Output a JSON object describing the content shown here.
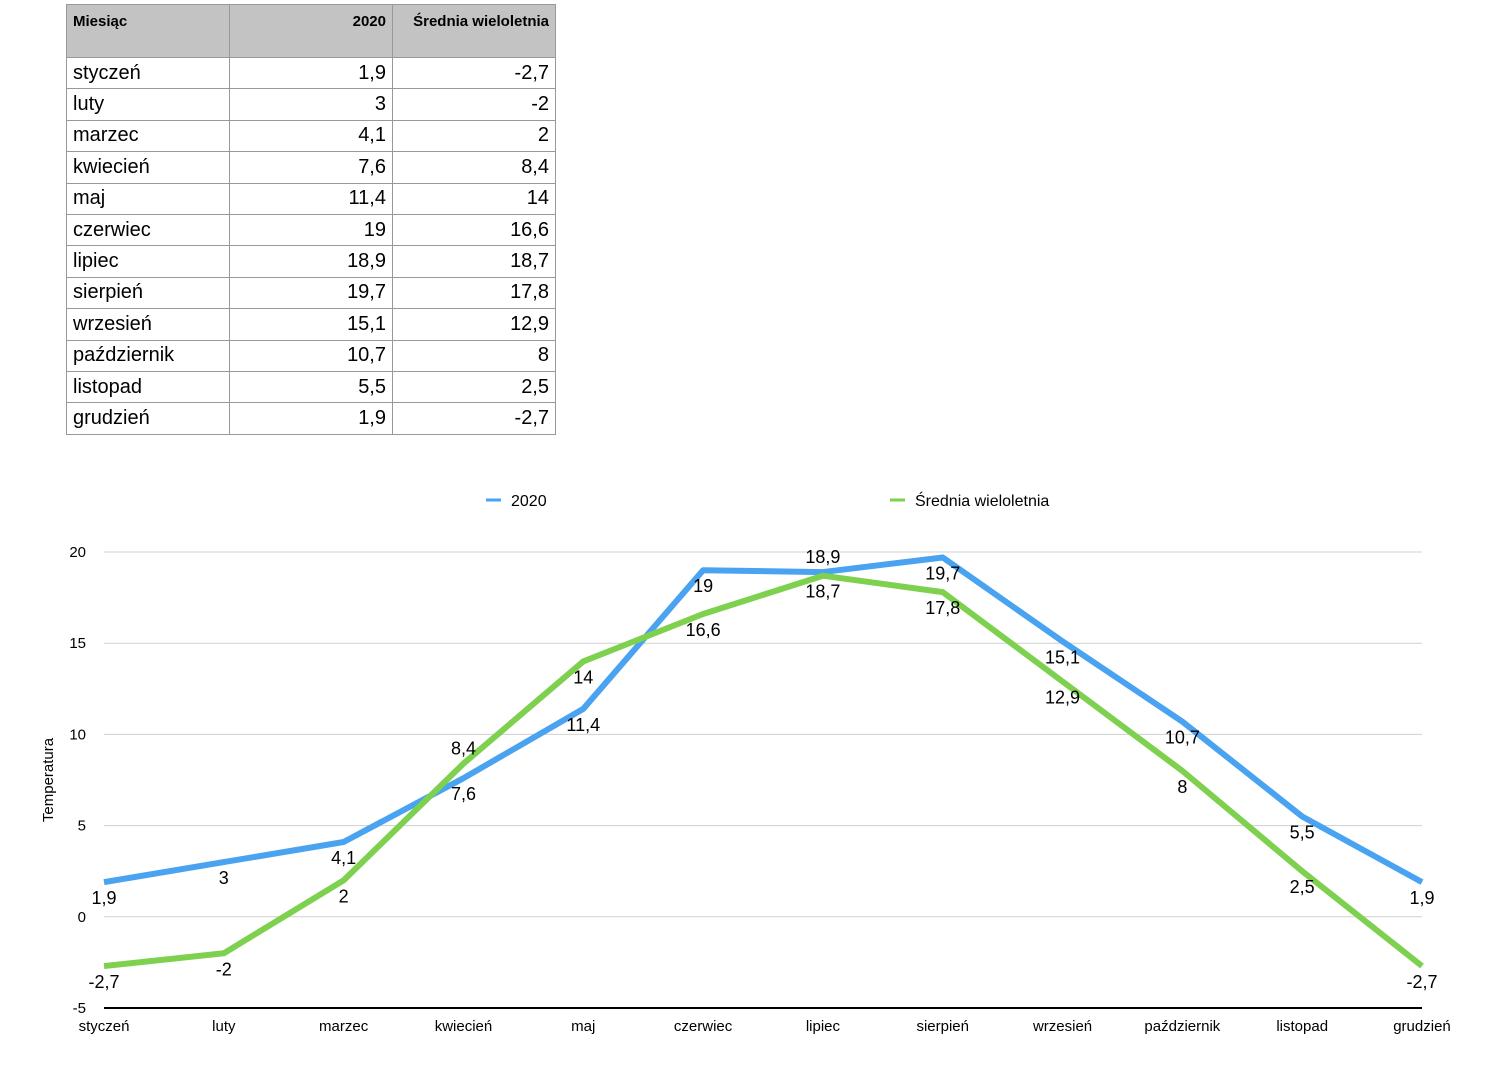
{
  "table": {
    "headers": [
      "Miesiąc",
      "2020",
      "Średnia wieloletnia"
    ],
    "rows": [
      [
        "styczeń",
        "1,9",
        "-2,7"
      ],
      [
        "luty",
        "3",
        "-2"
      ],
      [
        "marzec",
        "4,1",
        "2"
      ],
      [
        "kwiecień",
        "7,6",
        "8,4"
      ],
      [
        "maj",
        "11,4",
        "14"
      ],
      [
        "czerwiec",
        "19",
        "16,6"
      ],
      [
        "lipiec",
        "18,9",
        "18,7"
      ],
      [
        "sierpień",
        "19,7",
        "17,8"
      ],
      [
        "wrzesień",
        "15,1",
        "12,9"
      ],
      [
        "październik",
        "10,7",
        "8"
      ],
      [
        "listopad",
        "5,5",
        "2,5"
      ],
      [
        "grudzień",
        "1,9",
        "-2,7"
      ]
    ]
  },
  "chart_data": {
    "type": "line",
    "title": "",
    "xlabel": "",
    "ylabel": "Temperatura",
    "ylim": [
      -5,
      20
    ],
    "yticks": [
      -5,
      0,
      5,
      10,
      15,
      20
    ],
    "grid": true,
    "legend": "top",
    "categories": [
      "styczeń",
      "luty",
      "marzec",
      "kwiecień",
      "maj",
      "czerwiec",
      "lipiec",
      "sierpień",
      "wrzesień",
      "październik",
      "listopad",
      "grudzień"
    ],
    "series": [
      {
        "name": "2020",
        "color": "#4aa3f0",
        "values": [
          1.9,
          3,
          4.1,
          7.6,
          11.4,
          19,
          18.9,
          19.7,
          15.1,
          10.7,
          5.5,
          1.9
        ]
      },
      {
        "name": "Średnia wieloletnia",
        "color": "#7ed04f",
        "values": [
          -2.7,
          -2,
          2,
          8.4,
          14,
          16.6,
          18.7,
          17.8,
          12.9,
          8,
          2.5,
          -2.7
        ]
      }
    ]
  }
}
